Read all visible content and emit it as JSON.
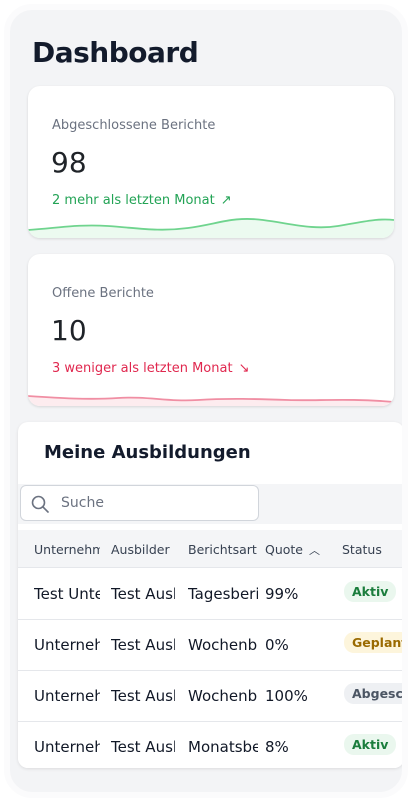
{
  "page": {
    "title": "Dashboard"
  },
  "cards": [
    {
      "label": "Abgeschlossene Berichte",
      "value": "98",
      "trend": "2 mehr als letzten Monat",
      "trend_direction": "up",
      "color": "#22a355"
    },
    {
      "label": "Offene Berichte",
      "value": "10",
      "trend": "3 weniger als letzten Monat",
      "trend_direction": "down",
      "color": "#e0284f"
    }
  ],
  "trainings": {
    "title": "Meine Ausbildungen",
    "search_placeholder": "Suche",
    "columns": [
      "Unternehmen",
      "Ausbilder",
      "Berichtsart",
      "Quote",
      "Status"
    ],
    "sort_column": "Quote",
    "rows": [
      {
        "company": "Test Unternehmen",
        "trainer": "Test Ausbilder",
        "report_type": "Tagesbericht",
        "quote": "99%",
        "status": "Aktiv",
        "status_kind": "aktiv"
      },
      {
        "company": "Unternehmen",
        "trainer": "Test Ausbilder",
        "report_type": "Wochenbericht",
        "quote": "0%",
        "status": "Geplant",
        "status_kind": "geplant"
      },
      {
        "company": "Unternehmen",
        "trainer": "Test Ausbilder",
        "report_type": "Wochenbericht",
        "quote": "100%",
        "status": "Abgeschlossen",
        "status_kind": "abg"
      },
      {
        "company": "Unternehmen",
        "trainer": "Test Ausbilder",
        "report_type": "Monatsbericht",
        "quote": "8%",
        "status": "Aktiv",
        "status_kind": "aktiv"
      }
    ]
  }
}
